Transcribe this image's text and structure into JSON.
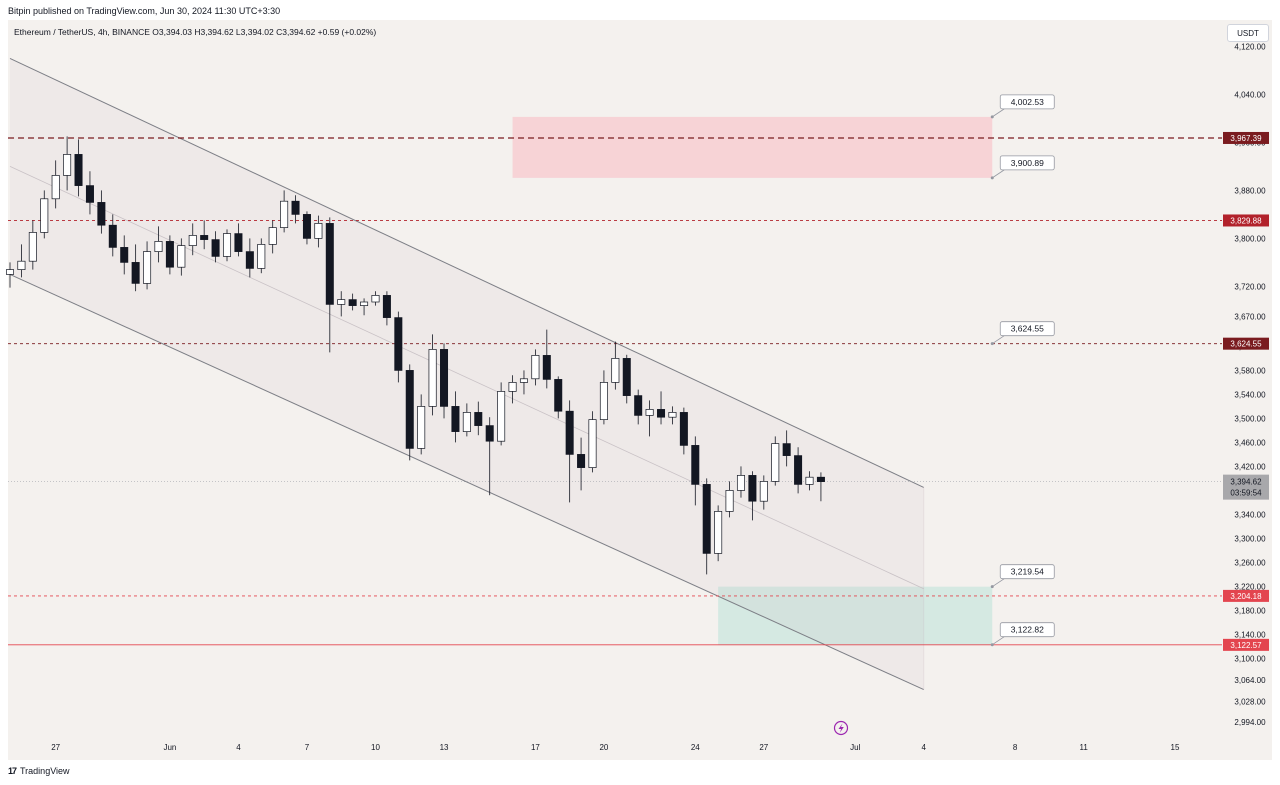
{
  "header": {
    "publisher_line": "Bitpin published on TradingView.com, Jun 30, 2024 11:30 UTC+3:30",
    "symbol_line": "Ethereum / TetherUS, 4h, BINANCE  O3,394.03  H3,394.62  L3,394.02  C3,394.62  +0.59 (+0.02%)",
    "currency": "USDT"
  },
  "footer": {
    "brand": "TradingView",
    "logo_text": "17"
  },
  "colors": {
    "candle": "#131722",
    "resistance_zone": "#f7d3d6",
    "support_zone": "#d5e9e2",
    "dark_red": "#7a1b1f",
    "red": "#b2222b",
    "bright_red": "#e3454f",
    "current_gray": "#a8a8ab",
    "purple": "#9c27b0"
  },
  "chart_data": {
    "type": "candlestick",
    "symbol": "Ethereum / TetherUS",
    "interval": "4h",
    "exchange": "BINANCE",
    "ylim": [
      2964,
      4164
    ],
    "y_ticks": [
      4120,
      4040,
      3960,
      3880,
      3800,
      3720,
      3670,
      3620,
      3580,
      3540,
      3500,
      3460,
      3420,
      3380,
      3340,
      3300,
      3260,
      3220,
      3180,
      3140,
      3100,
      3064,
      3028,
      2994
    ],
    "y_tick_labels": [
      "4,120.00",
      "4,040.00",
      "3,960.00",
      "3,880.00",
      "3,800.00",
      "3,720.00",
      "3,670.00",
      "3,620.00",
      "3,580.00",
      "3,540.00",
      "3,500.00",
      "3,460.00",
      "3,420.00",
      "3,380.00",
      "3,340.00",
      "3,300.00",
      "3,260.00",
      "3,220.00",
      "3,180.00",
      "3,140.00",
      "3,100.00",
      "3,064.00",
      "3,028.00",
      "2,994.00"
    ],
    "x_ticks": [
      {
        "label": "27",
        "day": -4
      },
      {
        "label": "Jun",
        "day": 1
      },
      {
        "label": "4",
        "day": 4
      },
      {
        "label": "7",
        "day": 7
      },
      {
        "label": "10",
        "day": 10
      },
      {
        "label": "13",
        "day": 13
      },
      {
        "label": "17",
        "day": 17
      },
      {
        "label": "20",
        "day": 20
      },
      {
        "label": "24",
        "day": 24
      },
      {
        "label": "27",
        "day": 27
      },
      {
        "label": "Jul",
        "day": 31
      },
      {
        "label": "4",
        "day": 34
      },
      {
        "label": "8",
        "day": 38
      },
      {
        "label": "11",
        "day": 41
      },
      {
        "label": "15",
        "day": 45
      }
    ],
    "price_levels": [
      {
        "price": 3967.39,
        "label": "3,967.39",
        "style": "dashed",
        "color": "dark_red"
      },
      {
        "price": 3829.88,
        "label": "3,829.88",
        "style": "dashed",
        "color": "red"
      },
      {
        "price": 3624.55,
        "label": "3,624.55",
        "style": "dashed",
        "color": "dark_red"
      },
      {
        "price": 3204.18,
        "label": "3,204.18",
        "style": "dashed",
        "color": "bright_red"
      },
      {
        "price": 3122.57,
        "label": "3,122.57",
        "style": "solid",
        "color": "bright_red"
      }
    ],
    "current_price": {
      "price": 3394.62,
      "label": "3,394.62",
      "countdown": "03:59:54"
    },
    "zones": [
      {
        "name": "resistance",
        "day_from": 16,
        "day_to": 37,
        "top": 4002.53,
        "bottom": 3900.89
      },
      {
        "name": "support",
        "day_from": 25,
        "day_to": 37,
        "top": 3219.54,
        "bottom": 3122.82
      }
    ],
    "callouts": [
      {
        "price": 4002.53,
        "label": "4,002.53",
        "day": 37
      },
      {
        "price": 3900.89,
        "label": "3,900.89",
        "day": 37
      },
      {
        "price": 3624.55,
        "label": "3,624.55",
        "day": 37
      },
      {
        "price": 3219.54,
        "label": "3,219.54",
        "day": 37
      },
      {
        "price": 3122.82,
        "label": "3,122.82",
        "day": 37
      }
    ],
    "channel": {
      "upper": [
        {
          "day": -6,
          "price": 4100
        },
        {
          "day": 34,
          "price": 3385
        }
      ],
      "lower": [
        {
          "day": -6,
          "price": 3740
        },
        {
          "day": 34,
          "price": 3048
        }
      ],
      "middle": [
        {
          "day": -6,
          "price": 3920
        },
        {
          "day": 34,
          "price": 3216
        }
      ]
    },
    "ohlc": [
      {
        "day": -6.0,
        "o": 3740,
        "h": 3760,
        "l": 3718,
        "c": 3748
      },
      {
        "day": -5.5,
        "o": 3748,
        "h": 3790,
        "l": 3735,
        "c": 3762
      },
      {
        "day": -5.0,
        "o": 3762,
        "h": 3830,
        "l": 3748,
        "c": 3810
      },
      {
        "day": -4.5,
        "o": 3810,
        "h": 3880,
        "l": 3800,
        "c": 3866
      },
      {
        "day": -4.0,
        "o": 3866,
        "h": 3930,
        "l": 3850,
        "c": 3905
      },
      {
        "day": -3.5,
        "o": 3905,
        "h": 3970,
        "l": 3880,
        "c": 3940
      },
      {
        "day": -3.0,
        "o": 3940,
        "h": 3965,
        "l": 3870,
        "c": 3888
      },
      {
        "day": -2.5,
        "o": 3888,
        "h": 3912,
        "l": 3840,
        "c": 3860
      },
      {
        "day": -2.0,
        "o": 3860,
        "h": 3880,
        "l": 3808,
        "c": 3822
      },
      {
        "day": -1.5,
        "o": 3822,
        "h": 3840,
        "l": 3770,
        "c": 3785
      },
      {
        "day": -1.0,
        "o": 3785,
        "h": 3805,
        "l": 3740,
        "c": 3760
      },
      {
        "day": -0.5,
        "o": 3760,
        "h": 3790,
        "l": 3712,
        "c": 3725
      },
      {
        "day": 0.0,
        "o": 3725,
        "h": 3795,
        "l": 3715,
        "c": 3778
      },
      {
        "day": 0.5,
        "o": 3778,
        "h": 3820,
        "l": 3760,
        "c": 3795
      },
      {
        "day": 1.0,
        "o": 3795,
        "h": 3805,
        "l": 3740,
        "c": 3752
      },
      {
        "day": 1.5,
        "o": 3752,
        "h": 3800,
        "l": 3738,
        "c": 3788
      },
      {
        "day": 2.0,
        "o": 3788,
        "h": 3825,
        "l": 3772,
        "c": 3805
      },
      {
        "day": 2.5,
        "o": 3805,
        "h": 3830,
        "l": 3782,
        "c": 3798
      },
      {
        "day": 3.0,
        "o": 3798,
        "h": 3812,
        "l": 3760,
        "c": 3770
      },
      {
        "day": 3.5,
        "o": 3770,
        "h": 3815,
        "l": 3762,
        "c": 3808
      },
      {
        "day": 4.0,
        "o": 3808,
        "h": 3825,
        "l": 3770,
        "c": 3778
      },
      {
        "day": 4.5,
        "o": 3778,
        "h": 3800,
        "l": 3735,
        "c": 3750
      },
      {
        "day": 5.0,
        "o": 3750,
        "h": 3800,
        "l": 3742,
        "c": 3790
      },
      {
        "day": 5.5,
        "o": 3790,
        "h": 3830,
        "l": 3775,
        "c": 3818
      },
      {
        "day": 6.0,
        "o": 3818,
        "h": 3880,
        "l": 3810,
        "c": 3862
      },
      {
        "day": 6.5,
        "o": 3862,
        "h": 3872,
        "l": 3825,
        "c": 3840
      },
      {
        "day": 7.0,
        "o": 3840,
        "h": 3845,
        "l": 3790,
        "c": 3800
      },
      {
        "day": 7.5,
        "o": 3800,
        "h": 3838,
        "l": 3785,
        "c": 3825
      },
      {
        "day": 8.0,
        "o": 3825,
        "h": 3835,
        "l": 3610,
        "c": 3690
      },
      {
        "day": 8.5,
        "o": 3690,
        "h": 3712,
        "l": 3670,
        "c": 3698
      },
      {
        "day": 9.0,
        "o": 3698,
        "h": 3708,
        "l": 3680,
        "c": 3688
      },
      {
        "day": 9.5,
        "o": 3688,
        "h": 3700,
        "l": 3672,
        "c": 3694
      },
      {
        "day": 10.0,
        "o": 3694,
        "h": 3712,
        "l": 3688,
        "c": 3705
      },
      {
        "day": 10.5,
        "o": 3705,
        "h": 3712,
        "l": 3655,
        "c": 3668
      },
      {
        "day": 11.0,
        "o": 3668,
        "h": 3678,
        "l": 3560,
        "c": 3580
      },
      {
        "day": 11.5,
        "o": 3580,
        "h": 3590,
        "l": 3430,
        "c": 3450
      },
      {
        "day": 12.0,
        "o": 3450,
        "h": 3540,
        "l": 3440,
        "c": 3520
      },
      {
        "day": 12.5,
        "o": 3520,
        "h": 3640,
        "l": 3505,
        "c": 3615
      },
      {
        "day": 13.0,
        "o": 3615,
        "h": 3625,
        "l": 3500,
        "c": 3520
      },
      {
        "day": 13.5,
        "o": 3520,
        "h": 3545,
        "l": 3460,
        "c": 3478
      },
      {
        "day": 14.0,
        "o": 3478,
        "h": 3525,
        "l": 3470,
        "c": 3510
      },
      {
        "day": 14.5,
        "o": 3510,
        "h": 3528,
        "l": 3472,
        "c": 3488
      },
      {
        "day": 15.0,
        "o": 3488,
        "h": 3502,
        "l": 3372,
        "c": 3462
      },
      {
        "day": 15.5,
        "o": 3462,
        "h": 3560,
        "l": 3455,
        "c": 3545
      },
      {
        "day": 16.0,
        "o": 3545,
        "h": 3572,
        "l": 3525,
        "c": 3560
      },
      {
        "day": 16.5,
        "o": 3560,
        "h": 3580,
        "l": 3540,
        "c": 3566
      },
      {
        "day": 17.0,
        "o": 3566,
        "h": 3615,
        "l": 3555,
        "c": 3605
      },
      {
        "day": 17.5,
        "o": 3605,
        "h": 3648,
        "l": 3550,
        "c": 3565
      },
      {
        "day": 18.0,
        "o": 3565,
        "h": 3570,
        "l": 3500,
        "c": 3512
      },
      {
        "day": 18.5,
        "o": 3512,
        "h": 3530,
        "l": 3360,
        "c": 3440
      },
      {
        "day": 19.0,
        "o": 3440,
        "h": 3468,
        "l": 3380,
        "c": 3418
      },
      {
        "day": 19.5,
        "o": 3418,
        "h": 3512,
        "l": 3410,
        "c": 3498
      },
      {
        "day": 20.0,
        "o": 3498,
        "h": 3580,
        "l": 3490,
        "c": 3560
      },
      {
        "day": 20.5,
        "o": 3560,
        "h": 3628,
        "l": 3548,
        "c": 3600
      },
      {
        "day": 21.0,
        "o": 3600,
        "h": 3606,
        "l": 3525,
        "c": 3538
      },
      {
        "day": 21.5,
        "o": 3538,
        "h": 3548,
        "l": 3490,
        "c": 3505
      },
      {
        "day": 22.0,
        "o": 3505,
        "h": 3530,
        "l": 3470,
        "c": 3515
      },
      {
        "day": 22.5,
        "o": 3515,
        "h": 3545,
        "l": 3490,
        "c": 3502
      },
      {
        "day": 23.0,
        "o": 3502,
        "h": 3520,
        "l": 3490,
        "c": 3510
      },
      {
        "day": 23.5,
        "o": 3510,
        "h": 3518,
        "l": 3440,
        "c": 3455
      },
      {
        "day": 24.0,
        "o": 3455,
        "h": 3470,
        "l": 3355,
        "c": 3390
      },
      {
        "day": 24.5,
        "o": 3390,
        "h": 3400,
        "l": 3240,
        "c": 3275
      },
      {
        "day": 25.0,
        "o": 3275,
        "h": 3355,
        "l": 3262,
        "c": 3345
      },
      {
        "day": 25.5,
        "o": 3345,
        "h": 3395,
        "l": 3335,
        "c": 3380
      },
      {
        "day": 26.0,
        "o": 3380,
        "h": 3420,
        "l": 3368,
        "c": 3405
      },
      {
        "day": 26.5,
        "o": 3405,
        "h": 3412,
        "l": 3330,
        "c": 3362
      },
      {
        "day": 27.0,
        "o": 3362,
        "h": 3405,
        "l": 3348,
        "c": 3395
      },
      {
        "day": 27.5,
        "o": 3395,
        "h": 3470,
        "l": 3388,
        "c": 3458
      },
      {
        "day": 28.0,
        "o": 3458,
        "h": 3480,
        "l": 3420,
        "c": 3438
      },
      {
        "day": 28.5,
        "o": 3438,
        "h": 3452,
        "l": 3375,
        "c": 3390
      },
      {
        "day": 29.0,
        "o": 3390,
        "h": 3412,
        "l": 3380,
        "c": 3402
      },
      {
        "day": 29.5,
        "o": 3402,
        "h": 3410,
        "l": 3362,
        "c": 3394.62
      }
    ]
  }
}
